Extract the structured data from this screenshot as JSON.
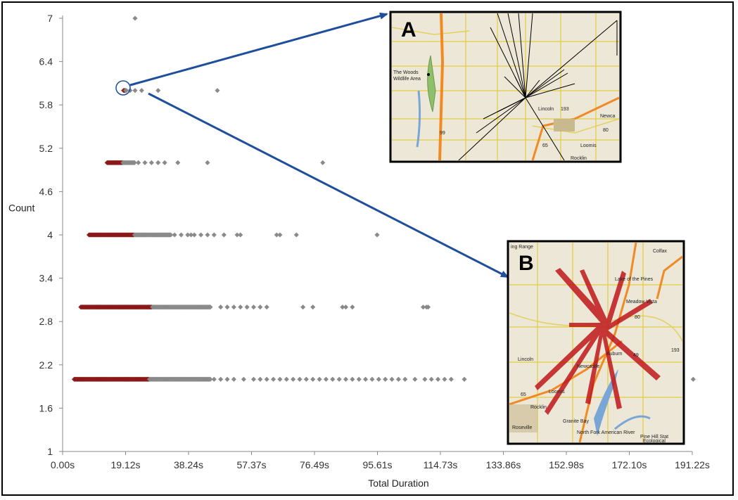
{
  "chart_data": {
    "type": "scatter",
    "xlabel": "Total Duration",
    "ylabel": "Count",
    "x_ticks": [
      "0.00s",
      "19.12s",
      "38.24s",
      "57.37s",
      "76.49s",
      "95.61s",
      "114.73s",
      "133.86s",
      "152.98s",
      "172.10s",
      "191.22s"
    ],
    "y_ticks": [
      "1",
      "1.6",
      "2.2",
      "2.8",
      "3.4",
      "4",
      "4.6",
      "5.2",
      "5.8",
      "6.4",
      "7"
    ],
    "xlim": [
      0,
      191.22
    ],
    "ylim": [
      1,
      7
    ],
    "grid": false,
    "point_color_dense": "#8b1a1a",
    "point_color_sparse": "#8a8a8a",
    "series": [
      {
        "count": 2,
        "dense_range": [
          3.5,
          45
        ],
        "sparse_x": [
          46,
          48,
          50,
          52,
          55,
          58,
          60,
          62,
          64,
          66,
          68,
          70,
          72,
          74,
          76,
          78,
          80,
          82,
          84,
          86,
          88,
          90,
          92,
          94,
          96,
          98,
          100,
          102,
          104,
          107,
          110,
          112,
          114,
          116,
          118,
          122,
          191.5
        ]
      },
      {
        "count": 3,
        "dense_range": [
          5.5,
          45
        ],
        "sparse_x": [
          48,
          50,
          52,
          54,
          56,
          58,
          60,
          62,
          73,
          76,
          85,
          86,
          88,
          109.5,
          110.5,
          111
        ]
      },
      {
        "count": 4,
        "dense_range": [
          8,
          33
        ],
        "sparse_x": [
          34,
          36,
          38,
          39,
          40,
          42,
          44,
          46,
          49,
          53,
          54,
          65,
          66,
          71,
          95.5
        ]
      },
      {
        "count": 5,
        "dense_range": [
          13.5,
          22
        ],
        "sparse_x": [
          23,
          25,
          27,
          29,
          31,
          35,
          44,
          79
        ]
      },
      {
        "count": 6,
        "dense_range": [
          18.5,
          19.5
        ],
        "sparse_x": [
          20.5,
          22,
          24,
          29,
          47
        ]
      },
      {
        "count": 7,
        "dense_range": null,
        "sparse_x": [
          22
        ]
      }
    ],
    "annotations": {
      "inset_a_label": "A",
      "inset_b_label": "B",
      "arrow_color": "#1f4e9c"
    }
  },
  "map_a": {
    "labels": [
      "The Woods",
      "Wildlife Area",
      "Lincoln",
      "Newca",
      "Loomis",
      "Rocklin",
      "193",
      "99",
      "65",
      "80"
    ]
  },
  "map_b": {
    "labels": [
      "ing Range",
      "Colfax",
      "Lake of the Pines",
      "Meadow Vista",
      "Lincoln",
      "Newcastle",
      "Auburn",
      "Loomis",
      "Rocklin",
      "Granite Bay",
      "Roseville",
      "North Fork American River",
      "Pine Hill Stat",
      "Ecological",
      "193",
      "80",
      "49",
      "65"
    ]
  }
}
